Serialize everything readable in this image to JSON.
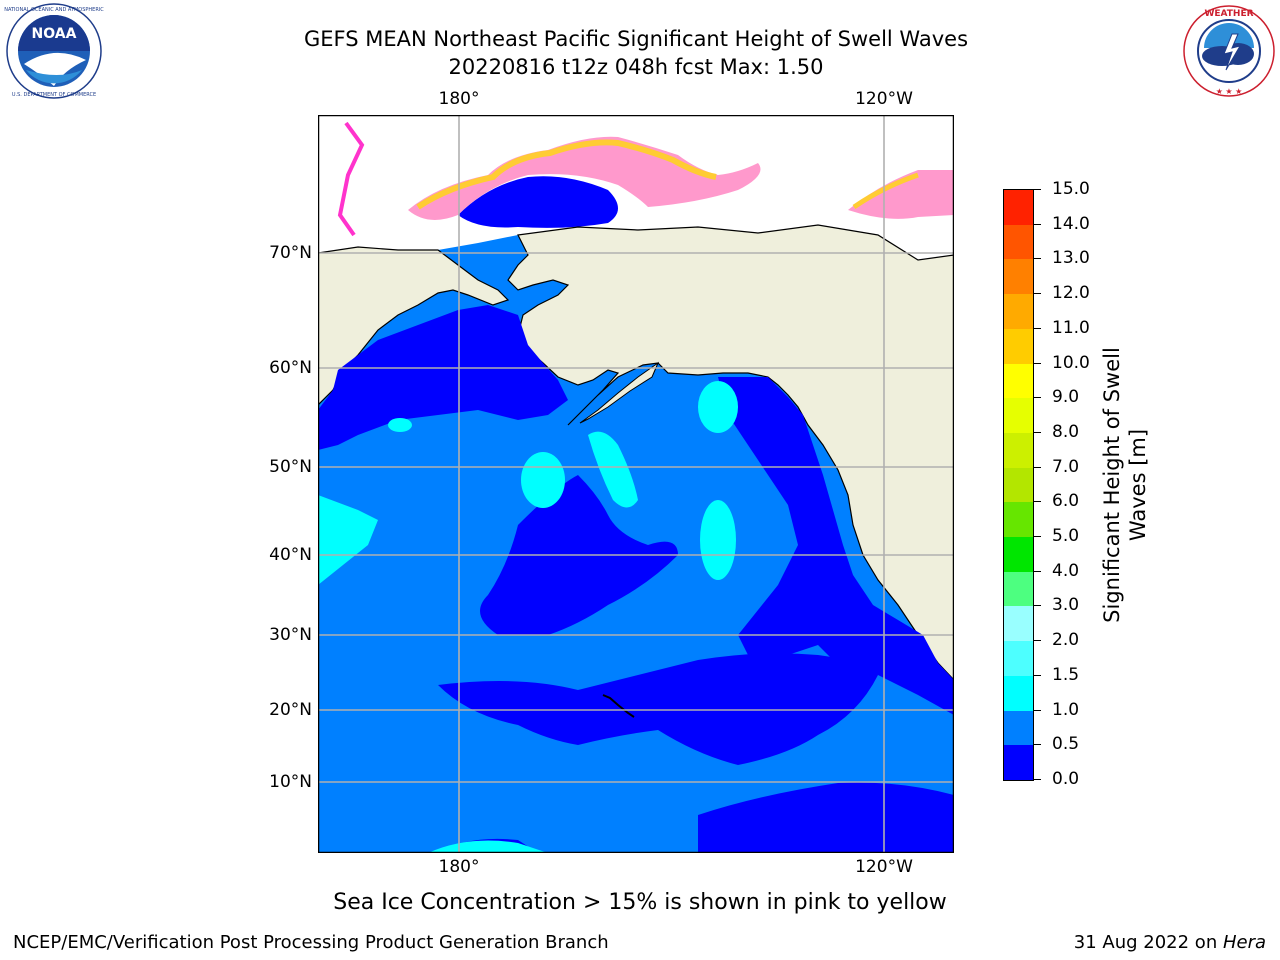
{
  "header": {
    "title_line1": "GEFS MEAN Northeast Pacific Significant Height of Swell Waves",
    "title_line2": "20220816 t12z 048h fcst   Max: 1.50"
  },
  "map": {
    "lon_labels_top": [
      "180°",
      "120°W"
    ],
    "lon_labels_bottom": [
      "180°",
      "120°W"
    ],
    "lat_labels": [
      "70°N",
      "60°N",
      "50°N",
      "40°N",
      "30°N",
      "20°N",
      "10°N"
    ],
    "colors": {
      "land": "#efefdc",
      "ocean_0_05": "#0000ff",
      "ocean_05_10": "#0080ff",
      "ocean_10_15": "#00ffff",
      "ice_low": "#ff33cc",
      "ice_mid": "#ff99cc",
      "ice_high": "#ffcc33",
      "grid": "#b0b0b0"
    }
  },
  "colorbar": {
    "title": "Significant Height of Swell Waves [m]",
    "tick_labels": [
      "0.0",
      "0.5",
      "1.0",
      "1.5",
      "2.0",
      "3.0",
      "4.0",
      "5.0",
      "6.0",
      "7.0",
      "8.0",
      "9.0",
      "10.0",
      "11.0",
      "12.0",
      "13.0",
      "14.0",
      "15.0"
    ],
    "colors": [
      "#0000ff",
      "#0080ff",
      "#00ffff",
      "#4dffff",
      "#99ffff",
      "#4dff80",
      "#00e600",
      "#66e600",
      "#b3e600",
      "#ccf000",
      "#e6ff00",
      "#ffff00",
      "#ffcc00",
      "#ffaa00",
      "#ff8000",
      "#ff5500",
      "#ff2200",
      "#ff0000"
    ]
  },
  "caption": "Sea Ice Concentration > 15% is shown in pink to yellow",
  "footer": {
    "left": "NCEP/EMC/Verification Post Processing Product Generation Branch",
    "right_date": "31 Aug 2022 on ",
    "right_machine": "Hera"
  },
  "logos": {
    "noaa_text": "NOAA",
    "noaa_ring": "NATIONAL OCEANIC AND ATMOSPHERIC ADMINISTRATION · U.S. DEPARTMENT OF COMMERCE",
    "nws_ring": "NATIONAL WEATHER SERVICE"
  }
}
